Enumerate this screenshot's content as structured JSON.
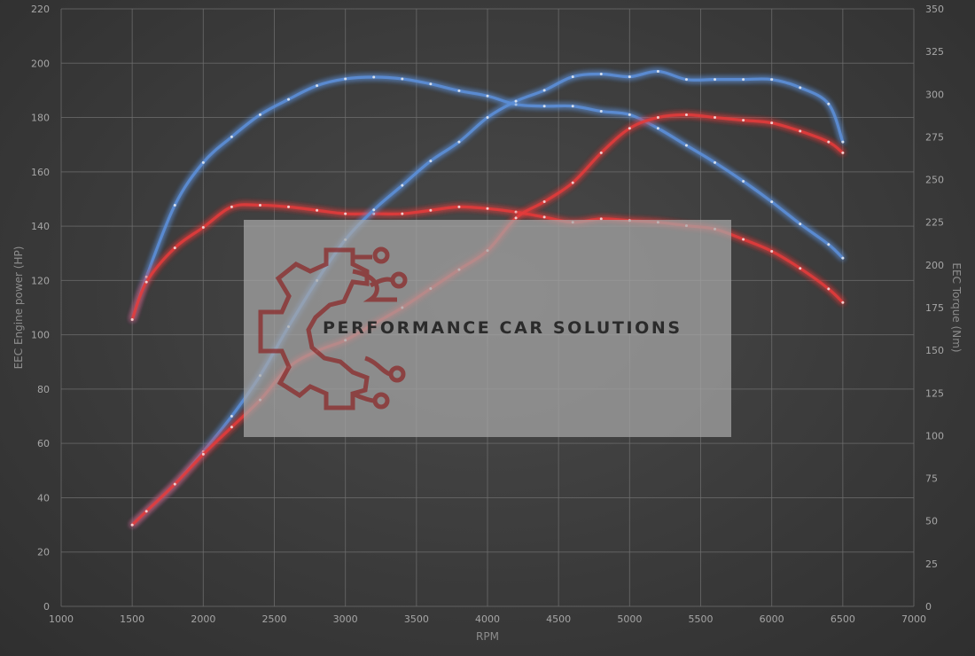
{
  "chart_data": {
    "type": "line",
    "title": "",
    "xlabel": "RPM",
    "ylabel": "EEC Engine power (HP)",
    "y2label": "EEC Torque (Nm)",
    "xlim": [
      1000,
      7000
    ],
    "ylim": [
      0,
      220
    ],
    "y2lim": [
      0,
      350
    ],
    "x_ticks": [
      1000,
      1500,
      2000,
      2500,
      3000,
      3500,
      4000,
      4500,
      5000,
      5500,
      6000,
      6500,
      7000
    ],
    "y_ticks": [
      0,
      20,
      40,
      60,
      80,
      100,
      120,
      140,
      160,
      180,
      200,
      220
    ],
    "y2_ticks": [
      0,
      25,
      50,
      75,
      100,
      125,
      150,
      175,
      200,
      225,
      250,
      275,
      300,
      325,
      350
    ],
    "grid": true,
    "colors": {
      "blue": "#5b8fd8",
      "red": "#e23a3a"
    },
    "series": [
      {
        "axis": "y2",
        "color": "blue",
        "x": [
          1500,
          1600,
          1800,
          2000,
          2200,
          2400,
          2600,
          2800,
          3000,
          3200,
          3400,
          3600,
          3800,
          4000,
          4200,
          4400,
          4600,
          4800,
          5000,
          5200,
          5400,
          5600,
          5800,
          6000,
          6200,
          6400,
          6500
        ],
        "y": [
          168,
          193,
          235,
          260,
          275,
          288,
          297,
          305,
          309,
          310,
          309,
          306,
          302,
          299,
          294,
          293,
          293,
          290,
          288,
          280,
          270,
          260,
          249,
          237,
          224,
          212,
          204
        ]
      },
      {
        "axis": "y2",
        "color": "red",
        "x": [
          1500,
          1600,
          1800,
          2000,
          2200,
          2400,
          2600,
          2800,
          3000,
          3200,
          3400,
          3600,
          3800,
          4000,
          4200,
          4400,
          4600,
          4800,
          5000,
          5200,
          5400,
          5600,
          5800,
          6000,
          6200,
          6400,
          6500
        ],
        "y": [
          168,
          190,
          210,
          222,
          234,
          235,
          234,
          232,
          230,
          230,
          230,
          232,
          234,
          233,
          231,
          228,
          225,
          227,
          226,
          225,
          223,
          221,
          215,
          208,
          198,
          186,
          178
        ]
      },
      {
        "axis": "y",
        "color": "blue",
        "x": [
          1500,
          1600,
          1800,
          2000,
          2200,
          2400,
          2600,
          2800,
          3000,
          3200,
          3400,
          3600,
          3800,
          4000,
          4200,
          4400,
          4600,
          4800,
          5000,
          5200,
          5400,
          5600,
          5800,
          6000,
          6200,
          6400,
          6500
        ],
        "y": [
          30,
          35,
          45,
          57,
          70,
          85,
          103,
          120,
          135,
          146,
          155,
          164,
          171,
          180,
          186,
          190,
          195,
          196,
          195,
          197,
          194,
          194,
          194,
          194,
          191,
          185,
          171
        ]
      },
      {
        "axis": "y",
        "color": "red",
        "x": [
          1500,
          1600,
          1800,
          2000,
          2200,
          2400,
          2600,
          2800,
          3000,
          3200,
          3400,
          3600,
          3800,
          4000,
          4200,
          4400,
          4600,
          4800,
          5000,
          5200,
          5400,
          5600,
          5800,
          6000,
          6200,
          6400,
          6500
        ],
        "y": [
          30,
          35,
          45,
          56,
          66,
          76,
          88,
          94,
          98,
          104,
          110,
          117,
          124,
          131,
          143,
          149,
          156,
          167,
          176,
          180,
          181,
          180,
          179,
          178,
          175,
          171,
          167
        ]
      }
    ]
  },
  "watermark": {
    "brand": "PERFORMANCE CAR SOLUTIONS",
    "logo_color": "#8b2a2a"
  }
}
